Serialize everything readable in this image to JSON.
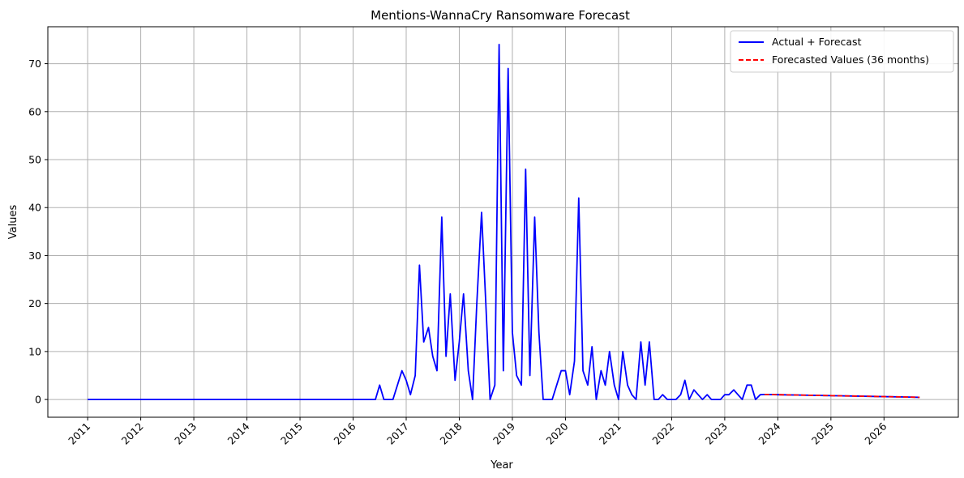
{
  "chart_data": {
    "type": "line",
    "title": "Mentions-WannaCry Ransomware Forecast",
    "xlabel": "Year",
    "ylabel": "Values",
    "xlim": [
      2010.25,
      2027.4
    ],
    "ylim": [
      -3.7,
      77.7
    ],
    "x_ticks": [
      "2011",
      "2012",
      "2013",
      "2014",
      "2015",
      "2016",
      "2017",
      "2018",
      "2019",
      "2020",
      "2021",
      "2022",
      "2023",
      "2024",
      "2025",
      "2026"
    ],
    "y_ticks": [
      0,
      10,
      20,
      30,
      40,
      50,
      60,
      70
    ],
    "grid": true,
    "legend_position": "top-right",
    "series": [
      {
        "name": "Actual + Forecast",
        "color": "#0000ff",
        "style": "solid",
        "x": [
          2011.0,
          2016.42,
          2016.5,
          2016.58,
          2016.75,
          2016.92,
          2017.0,
          2017.08,
          2017.17,
          2017.25,
          2017.33,
          2017.42,
          2017.5,
          2017.58,
          2017.67,
          2017.75,
          2017.83,
          2017.92,
          2018.0,
          2018.08,
          2018.17,
          2018.25,
          2018.33,
          2018.42,
          2018.5,
          2018.58,
          2018.67,
          2018.75,
          2018.83,
          2018.92,
          2019.0,
          2019.08,
          2019.17,
          2019.25,
          2019.33,
          2019.42,
          2019.5,
          2019.58,
          2019.75,
          2019.92,
          2020.0,
          2020.08,
          2020.17,
          2020.25,
          2020.33,
          2020.42,
          2020.5,
          2020.58,
          2020.67,
          2020.75,
          2020.83,
          2020.92,
          2021.0,
          2021.08,
          2021.17,
          2021.25,
          2021.33,
          2021.42,
          2021.5,
          2021.58,
          2021.67,
          2021.75,
          2021.83,
          2021.92,
          2022.0,
          2022.08,
          2022.17,
          2022.25,
          2022.33,
          2022.42,
          2022.5,
          2022.58,
          2022.67,
          2022.75,
          2022.83,
          2022.92,
          2023.0,
          2023.08,
          2023.17,
          2023.25,
          2023.33,
          2023.42,
          2023.5,
          2023.58,
          2023.67,
          2023.75,
          2024.0,
          2024.5,
          2025.0,
          2025.5,
          2026.0,
          2026.5,
          2026.67
        ],
        "values": [
          0,
          0,
          3,
          0,
          0,
          6,
          4,
          1,
          5,
          28,
          12,
          15,
          9,
          6,
          38,
          9,
          22,
          4,
          12,
          22,
          6,
          0,
          20,
          39,
          20,
          0,
          3,
          74,
          6,
          69,
          14,
          5,
          3,
          48,
          5,
          38,
          14,
          0,
          0,
          6,
          6,
          1,
          8,
          42,
          6,
          3,
          11,
          0,
          6,
          3,
          10,
          3,
          0,
          10,
          3,
          1,
          0,
          12,
          3,
          12,
          0,
          0,
          1,
          0,
          0,
          0,
          1,
          4,
          0,
          2,
          1,
          0,
          1,
          0,
          0,
          0,
          1,
          1,
          2,
          1,
          0,
          3,
          3,
          0,
          1,
          1.05,
          1.0,
          0.9,
          0.8,
          0.7,
          0.6,
          0.5,
          0.45
        ]
      },
      {
        "name": "Forecasted Values (36 months)",
        "color": "#ff0000",
        "style": "dashed",
        "x": [
          2023.75,
          2024.0,
          2024.5,
          2025.0,
          2025.5,
          2026.0,
          2026.5,
          2026.67
        ],
        "values": [
          1.05,
          1.0,
          0.9,
          0.8,
          0.7,
          0.6,
          0.5,
          0.45
        ]
      }
    ]
  }
}
